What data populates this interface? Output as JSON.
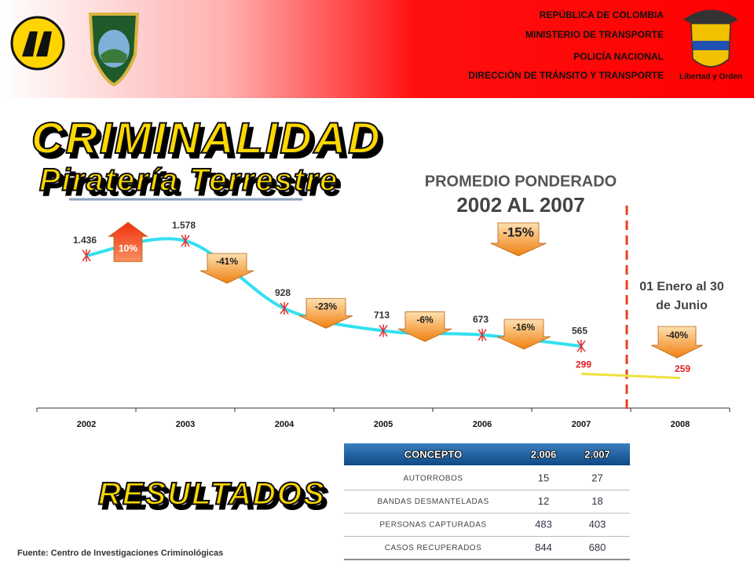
{
  "header": {
    "lines": [
      "REPÚBLICA DE COLOMBIA",
      "MINISTERIO DE TRANSPORTE",
      "POLICÍA NACIONAL",
      "DIRECCIÓN DE TRÁNSITO Y TRANSPORTE"
    ],
    "emblem_text": "Libertad y Orden"
  },
  "title": "CRIMINALIDAD",
  "subtitle": "Piratería Terrestre",
  "results_title": "RESULTADOS",
  "chart_data": {
    "type": "line",
    "title": "PROMEDIO PONDERADO",
    "subtitle": "2002 AL 2007",
    "categories": [
      "2002",
      "2003",
      "2004",
      "2005",
      "2006",
      "2007",
      "2008"
    ],
    "series": [
      {
        "color": "#33e0f0",
        "label_color": "#333333",
        "values": [
          1436,
          1578,
          928,
          713,
          673,
          565,
          null
        ],
        "value_labels": [
          "1.436",
          "1.578",
          "928",
          "713",
          "673",
          "565",
          null
        ]
      },
      {
        "color": "#f0e040",
        "label_color": "#e02020",
        "values": [
          null,
          null,
          null,
          null,
          null,
          299,
          259
        ],
        "value_labels": [
          null,
          null,
          null,
          null,
          null,
          "299",
          "259"
        ]
      }
    ],
    "changes": {
      "values": [
        10,
        -41,
        -23,
        -6,
        -16
      ],
      "labels": [
        "10%",
        "-41%",
        "-23%",
        "-6%",
        "-16%"
      ]
    },
    "average_change": {
      "value": -15,
      "label": "-15%"
    },
    "period_change": {
      "value": -40,
      "label": "-40%"
    },
    "period_note": [
      "01 Enero al  30",
      "de Junio"
    ],
    "ylim": [
      0,
      2000
    ],
    "marker_color": "#e03030",
    "divider_color": "#e84020"
  },
  "table": {
    "columns": [
      "CONCEPTO",
      "2.006",
      "2.007"
    ],
    "rows": [
      [
        "AUTORROBOS",
        "15",
        "27"
      ],
      [
        "BANDAS DESMANTELADAS",
        "12",
        "18"
      ],
      [
        "PERSONAS CAPTURADAS",
        "483",
        "403"
      ],
      [
        "CASOS RECUPERADOS",
        "844",
        "680"
      ]
    ]
  },
  "source": "Fuente: Centro de Investigaciones Criminológicas"
}
